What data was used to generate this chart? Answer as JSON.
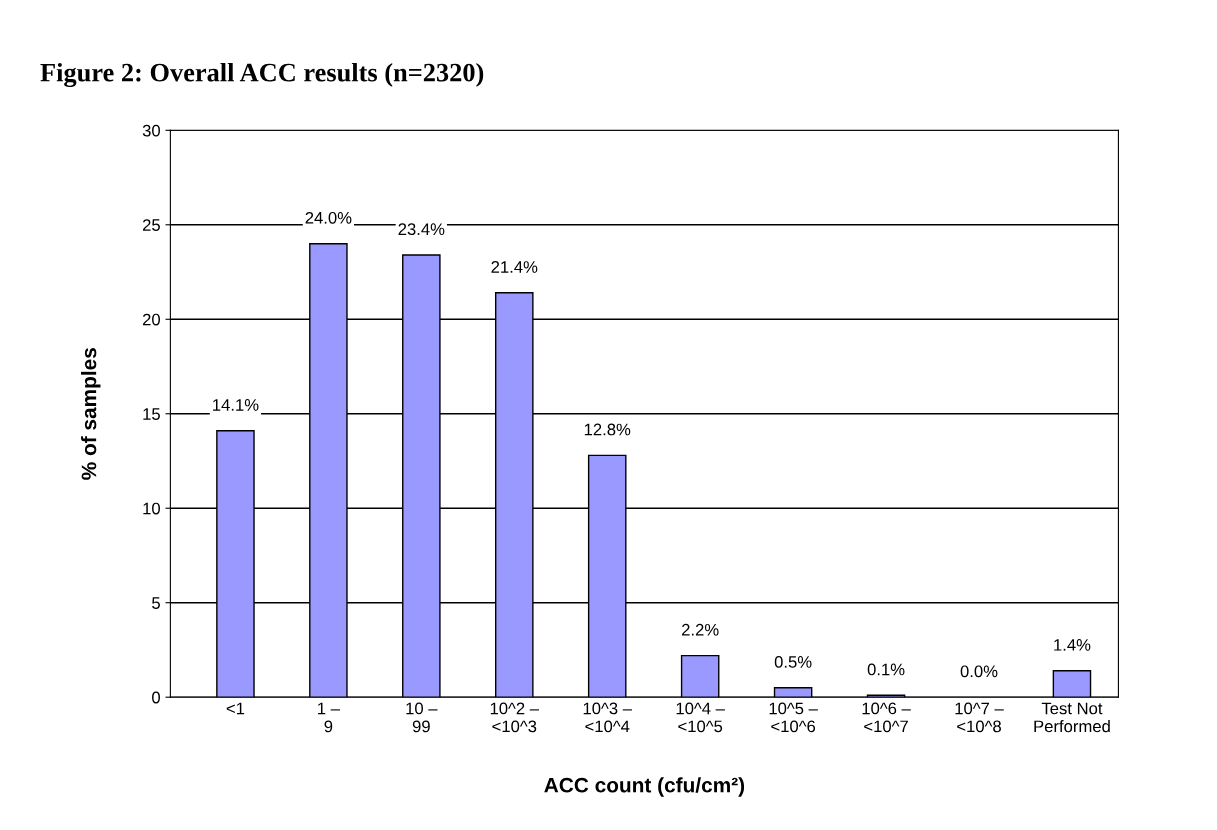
{
  "chart_data": {
    "type": "bar",
    "title": "Figure 2: Overall ACC results (n=2320)",
    "xlabel": "ACC count (cfu/cm²)",
    "ylabel": "% of samples",
    "categories": [
      "<1",
      "1 –\n9",
      "10 –\n99",
      "10^2 –\n<10^3",
      "10^3 –\n<10^4",
      "10^4 –\n<10^5",
      "10^5 –\n<10^6",
      "10^6 –\n<10^7",
      "10^7 –\n<10^8",
      "Test Not\nPerformed"
    ],
    "values": [
      14.1,
      24.0,
      23.4,
      21.4,
      12.8,
      2.2,
      0.5,
      0.1,
      0.0,
      1.4
    ],
    "value_labels": [
      "14.1%",
      "24.0%",
      "23.4%",
      "21.4%",
      "12.8%",
      "2.2%",
      "0.5%",
      "0.1%",
      "0.0%",
      "1.4%"
    ],
    "color": "#9999ff",
    "ylim": [
      0,
      30
    ],
    "yticks": [
      0,
      5,
      10,
      15,
      20,
      25,
      30
    ],
    "grid": "y",
    "legend": false
  }
}
